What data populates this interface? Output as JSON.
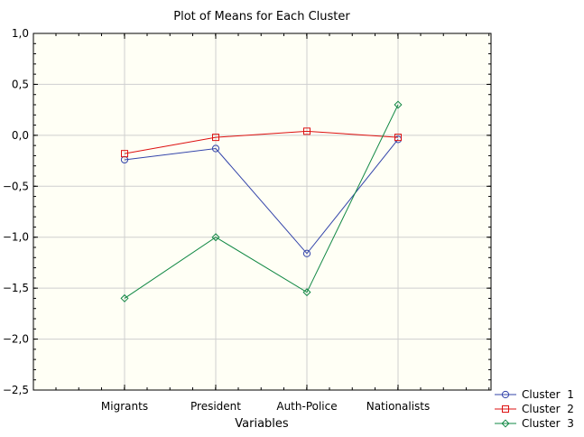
{
  "chart_data": {
    "type": "line",
    "title": "Plot of Means for Each Cluster",
    "xlabel": "Variables",
    "ylabel": "",
    "categories": [
      "Migrants",
      "President",
      "Auth-Police",
      "Nationalists"
    ],
    "ylim": [
      -2.5,
      1.0
    ],
    "yticks": [
      1.0,
      0.5,
      0.0,
      -0.5,
      -1.0,
      -1.5,
      -2.0,
      -2.5
    ],
    "ytick_labels": [
      "1,0",
      "0,5",
      "0,0",
      "−0,5",
      "−1,0",
      "−1,5",
      "−2,0",
      "−2,5"
    ],
    "grid": true,
    "legend_position": "bottom-right",
    "series": [
      {
        "name": "Cluster  1",
        "values": [
          -0.24,
          -0.13,
          -1.16,
          -0.04
        ],
        "color": "#3344aa",
        "marker": "circle"
      },
      {
        "name": "Cluster  2",
        "values": [
          -0.18,
          -0.02,
          0.04,
          -0.02
        ],
        "color": "#dd1111",
        "marker": "square"
      },
      {
        "name": "Cluster  3",
        "values": [
          -1.6,
          -1.0,
          -1.54,
          0.3
        ],
        "color": "#118844",
        "marker": "diamond"
      }
    ]
  }
}
